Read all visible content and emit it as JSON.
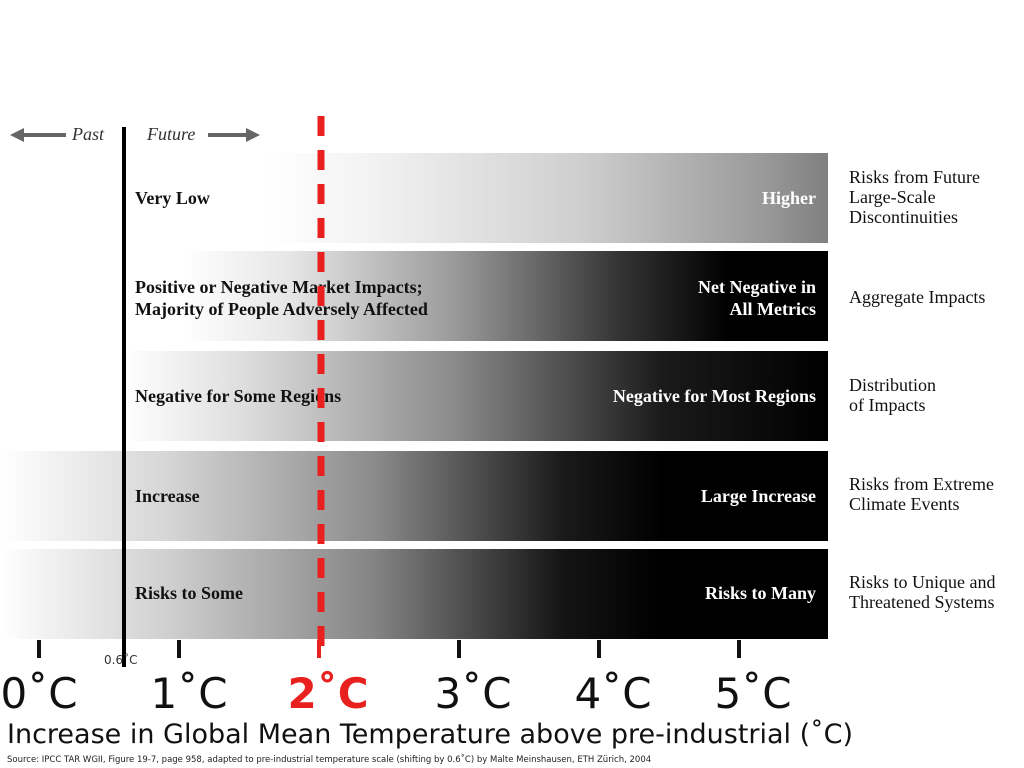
{
  "header": {
    "past": "Past",
    "future": "Future"
  },
  "rows": [
    {
      "left": "Very Low",
      "right": "Higher",
      "side": "Risks from Future\nLarge-Scale\nDiscontinuities"
    },
    {
      "left": "Positive or Negative Market Impacts;\nMajority of People Adversely Affected",
      "right": "Net Negative in\nAll Metrics",
      "side": "Aggregate Impacts"
    },
    {
      "left": "Negative for Some Regions",
      "right": "Negative for Most Regions",
      "side": "Distribution\nof Impacts"
    },
    {
      "left": "Increase",
      "right": "Large Increase",
      "side": "Risks from Extreme\nClimate Events"
    },
    {
      "left": "Risks to Some",
      "right": "Risks to Many",
      "side": "Risks to Unique and\nThreatened Systems"
    }
  ],
  "axis": {
    "ticks": [
      "0˚C",
      "1˚C",
      "2˚C",
      "3˚C",
      "4˚C",
      "5˚C"
    ],
    "present_label": "0.6˚C",
    "title": "Increase in Global Mean Temperature above pre-industrial (˚C)",
    "source": "Source: IPCC TAR WGII, Figure 19-7, page 958, adapted to pre-industrial temperature scale (shifting by 0.6˚C) by Malte Meinshausen, ETH Zürich, 2004"
  },
  "colors": {
    "highlight": "#e8201e",
    "dark": "#000000",
    "text": "#111111"
  }
}
